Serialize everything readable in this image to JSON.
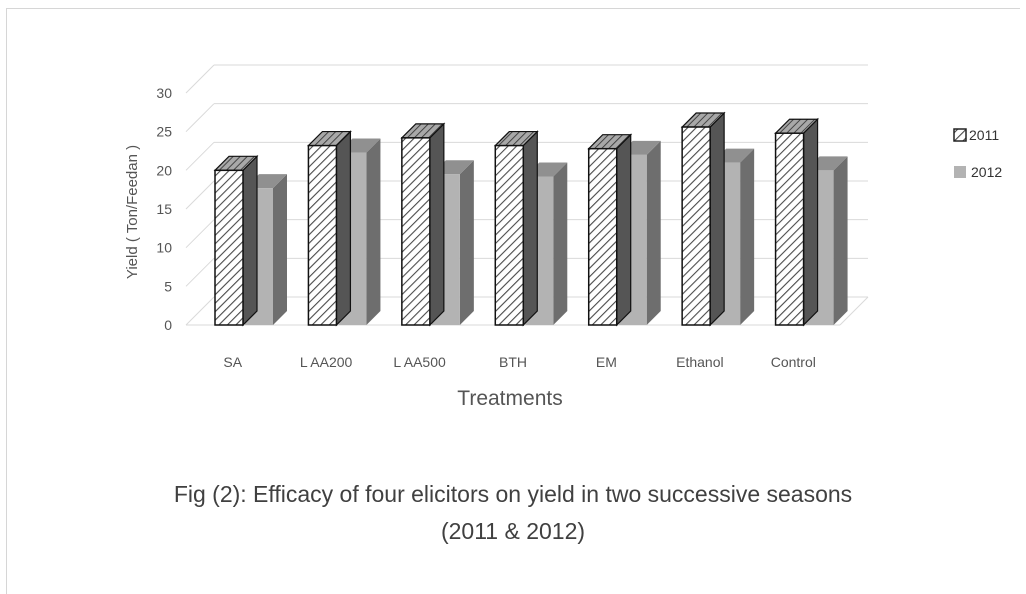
{
  "chart_data": {
    "type": "bar",
    "categories": [
      "SA",
      "L AA200",
      "L AA500",
      "BTH",
      "EM",
      "Ethanol",
      "Control"
    ],
    "series": [
      {
        "name": "2011",
        "values": [
          20.0,
          23.2,
          24.2,
          23.2,
          22.8,
          25.6,
          24.8
        ],
        "pattern": "hatched",
        "color": "#ffffff",
        "side_color": "#555555",
        "top_color": "#888888"
      },
      {
        "name": "2012",
        "values": [
          17.7,
          22.3,
          19.5,
          19.2,
          22.0,
          21.0,
          20.0
        ],
        "pattern": "solid",
        "color": "#b3b3b3",
        "side_color": "#6e6e6e",
        "top_color": "#909090"
      }
    ],
    "ylim": [
      0,
      30
    ],
    "yticks": [
      "0",
      "5",
      "10",
      "15",
      "20",
      "25",
      "30"
    ],
    "xlabel": "Treatments",
    "ylabel": "Yield ( Ton/Feedan )",
    "grid": true,
    "legend": "right",
    "three_d": true
  },
  "caption": {
    "line1": "Fig (2): Efficacy of four elicitors on yield in two successive seasons",
    "line2": "(2011 & 2012)"
  }
}
